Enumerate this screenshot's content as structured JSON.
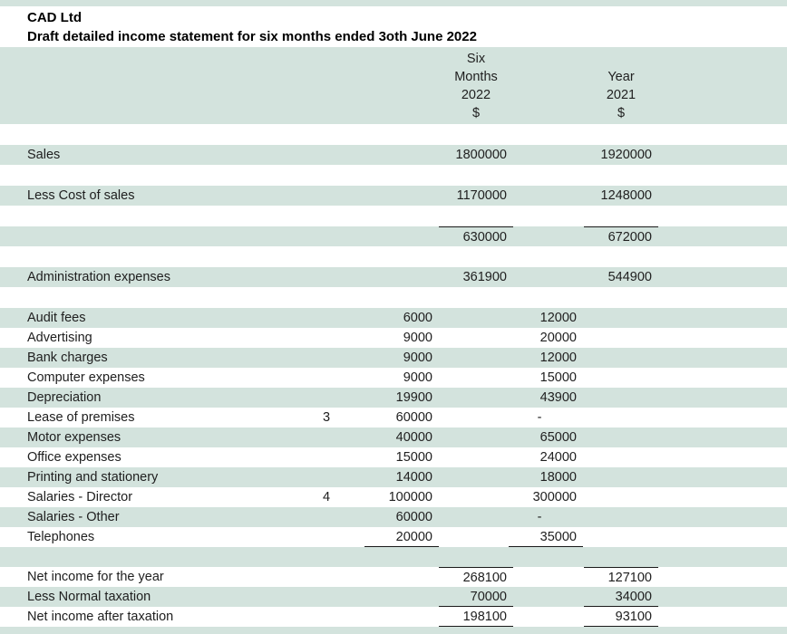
{
  "document": {
    "title": "CAD Ltd",
    "subtitle": "Draft detailed income statement for six months ended 3oth June 2022"
  },
  "header": {
    "period_2022": [
      "Six",
      "Months",
      "2022",
      "$"
    ],
    "period_2021": [
      "",
      "Year",
      "2021",
      "$"
    ]
  },
  "colors": {
    "band": "#d3e3dd",
    "rule": "#1a1a1a"
  },
  "rows": [
    {
      "type": "spacer"
    },
    {
      "type": "statement",
      "shaded": true,
      "label": "Sales",
      "d": "1800000",
      "f": "1920000"
    },
    {
      "type": "spacer"
    },
    {
      "type": "statement",
      "shaded": true,
      "label": "Less Cost of sales",
      "d": "1170000",
      "f": "1248000"
    },
    {
      "type": "spacer"
    },
    {
      "type": "statement",
      "shaded": true,
      "label": "",
      "d": "630000",
      "f": "672000",
      "rules": [
        "d:over",
        "f:over"
      ]
    },
    {
      "type": "spacer"
    },
    {
      "type": "statement",
      "shaded": true,
      "label": "Administration expenses",
      "d": "361900",
      "f": "544900"
    },
    {
      "type": "spacer"
    },
    {
      "type": "detail",
      "shaded": true,
      "label": "Audit fees",
      "c": "6000",
      "e": "12000"
    },
    {
      "type": "detail",
      "shaded": false,
      "label": "Advertising",
      "c": "9000",
      "e": "20000"
    },
    {
      "type": "detail",
      "shaded": true,
      "label": "Bank charges",
      "c": "9000",
      "e": "12000"
    },
    {
      "type": "detail",
      "shaded": false,
      "label": "Computer expenses",
      "c": "9000",
      "e": "15000"
    },
    {
      "type": "detail",
      "shaded": true,
      "label": "Depreciation",
      "c": "19900",
      "e": "43900"
    },
    {
      "type": "detail",
      "shaded": false,
      "label": "Lease of premises",
      "note": "3",
      "c": "60000",
      "e": "-"
    },
    {
      "type": "detail",
      "shaded": true,
      "label": "Motor expenses",
      "c": "40000",
      "e": "65000"
    },
    {
      "type": "detail",
      "shaded": false,
      "label": "Office expenses",
      "c": "15000",
      "e": "24000"
    },
    {
      "type": "detail",
      "shaded": true,
      "label": "Printing and stationery",
      "c": "14000",
      "e": "18000"
    },
    {
      "type": "detail",
      "shaded": false,
      "label": "Salaries - Director",
      "note": "4",
      "c": "100000",
      "e": "300000"
    },
    {
      "type": "detail",
      "shaded": true,
      "label": "Salaries - Other",
      "c": "60000",
      "e": "-"
    },
    {
      "type": "detail",
      "shaded": false,
      "label": "Telephones",
      "c": "20000",
      "e": "35000",
      "rules": [
        "c:under",
        "e:under"
      ]
    },
    {
      "type": "detail",
      "shaded": true,
      "label": ""
    },
    {
      "type": "detail",
      "shaded": false,
      "label": "Net income for the year",
      "d": "268100",
      "f": "127100",
      "rules": [
        "d:over",
        "f:over"
      ]
    },
    {
      "type": "detail",
      "shaded": true,
      "label": "Less Normal taxation",
      "d": "70000",
      "f": "34000",
      "rules": [
        "d:under",
        "f:under"
      ]
    },
    {
      "type": "detail",
      "shaded": false,
      "label": "Net income after taxation",
      "d": "198100",
      "f": "93100",
      "rules": [
        "d:under",
        "f:under"
      ]
    }
  ]
}
